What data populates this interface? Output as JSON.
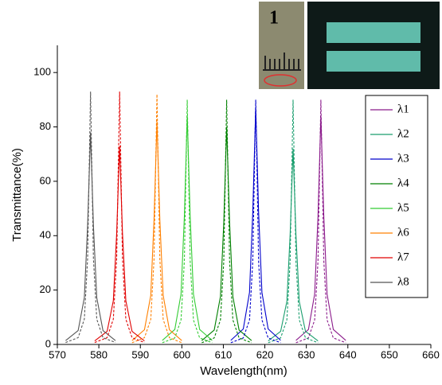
{
  "chart_data": {
    "type": "line",
    "xlabel": "Wavelength(nm)",
    "ylabel": "Transmittance(%)",
    "annotations": [
      "1"
    ],
    "xlim": [
      570,
      660
    ],
    "xticks": [
      570,
      580,
      590,
      600,
      610,
      620,
      630,
      640,
      650,
      660
    ],
    "ylim": [
      0,
      110
    ],
    "yticks": [
      0,
      20,
      40,
      60,
      80,
      100
    ],
    "legend": "upper right",
    "series": [
      {
        "name": "λ1",
        "color": "#8b1a8b",
        "x": [
          627.5,
          630.5,
          632,
          632.8,
          633.5,
          634.2,
          635,
          636.5,
          639.5
        ],
        "values": [
          1.5,
          5.5,
          18.5,
          47,
          84,
          47,
          18.5,
          5.5,
          1.5
        ]
      },
      {
        "name": "λ2",
        "color": "#1a9e6e",
        "x": [
          620.8,
          623.8,
          625.3,
          626.1,
          626.8,
          627.5,
          628.3,
          629.8,
          632.8
        ],
        "values": [
          1.3,
          4.8,
          15.8,
          40.3,
          72,
          40.3,
          15.8,
          4.8,
          1.3
        ]
      },
      {
        "name": "λ3",
        "color": "#0000cc",
        "x": [
          611.8,
          614.8,
          616.3,
          617.1,
          617.8,
          618.5,
          619.3,
          620.8,
          623.8
        ],
        "values": [
          1.5,
          5.7,
          19.1,
          48.7,
          87,
          48.7,
          19.1,
          5.7,
          1.5
        ]
      },
      {
        "name": "λ4",
        "color": "#008000",
        "x": [
          604.8,
          607.8,
          609.3,
          610.1,
          610.8,
          611.5,
          612.3,
          613.8,
          616.8
        ],
        "values": [
          1.4,
          5.3,
          17.6,
          44.8,
          80,
          44.8,
          17.6,
          5.3,
          1.4
        ]
      },
      {
        "name": "λ5",
        "color": "#33cc33",
        "x": [
          595.3,
          598.3,
          599.8,
          600.6,
          601.3,
          602,
          602.8,
          604.3,
          607.3
        ],
        "values": [
          1.5,
          5.5,
          18.5,
          47,
          84,
          47,
          18.5,
          5.5,
          1.5
        ]
      },
      {
        "name": "λ6",
        "color": "#ff8000",
        "x": [
          588,
          591,
          592.5,
          593.3,
          594,
          594.7,
          595.5,
          597,
          600
        ],
        "values": [
          1.4,
          5.4,
          18,
          45.9,
          82,
          45.9,
          18,
          5.4,
          1.4
        ]
      },
      {
        "name": "λ7",
        "color": "#e00000",
        "x": [
          579,
          582,
          583.5,
          584.3,
          585,
          585.7,
          586.5,
          588,
          591
        ],
        "values": [
          1.3,
          4.8,
          16.1,
          40.9,
          73,
          40.9,
          16.1,
          4.8,
          1.3
        ]
      },
      {
        "name": "λ8",
        "color": "#555555",
        "x": [
          572,
          575,
          576.5,
          577.3,
          578,
          578.7,
          579.5,
          581,
          584
        ],
        "values": [
          1.4,
          5.1,
          17.2,
          43.7,
          78,
          43.7,
          17.2,
          5.1,
          1.4
        ]
      },
      {
        "color": "#8b1a8b",
        "dash": true,
        "x": [
          627.5,
          630.5,
          632,
          632.8,
          633.5,
          634.2,
          635,
          636.5,
          639.5
        ],
        "values": [
          0.6,
          2.4,
          9,
          30.6,
          90,
          30.6,
          9,
          2.4,
          0.6
        ]
      },
      {
        "color": "#1a9e6e",
        "dash": true,
        "x": [
          620.8,
          623.8,
          625.3,
          626.1,
          626.8,
          627.5,
          628.3,
          629.8,
          632.8
        ],
        "values": [
          0.6,
          2.4,
          9,
          30.6,
          90,
          30.6,
          9,
          2.4,
          0.6
        ]
      },
      {
        "color": "#0000cc",
        "dash": true,
        "x": [
          611.8,
          614.8,
          616.3,
          617.1,
          617.8,
          618.5,
          619.3,
          620.8,
          623.8
        ],
        "values": [
          0.6,
          2.4,
          9,
          30.6,
          90,
          30.6,
          9,
          2.4,
          0.6
        ]
      },
      {
        "color": "#008000",
        "dash": true,
        "x": [
          604.8,
          607.8,
          609.3,
          610.1,
          610.8,
          611.5,
          612.3,
          613.8,
          616.8
        ],
        "values": [
          0.6,
          2.4,
          9,
          30.6,
          90,
          30.6,
          9,
          2.4,
          0.6
        ]
      },
      {
        "color": "#33cc33",
        "dash": true,
        "x": [
          595.3,
          598.3,
          599.8,
          600.6,
          601.3,
          602,
          602.8,
          604.3,
          607.3
        ],
        "values": [
          0.6,
          2.4,
          9,
          30.6,
          90,
          30.6,
          9,
          2.4,
          0.6
        ]
      },
      {
        "color": "#ff8000",
        "dash": true,
        "x": [
          588,
          591,
          592.5,
          593.3,
          594,
          594.7,
          595.5,
          597,
          600
        ],
        "values": [
          0.6,
          2.5,
          9.2,
          31.3,
          92,
          31.3,
          9.2,
          2.5,
          0.6
        ]
      },
      {
        "color": "#e00000",
        "dash": true,
        "x": [
          579,
          582,
          583.5,
          584.3,
          585,
          585.7,
          586.5,
          588,
          591
        ],
        "values": [
          0.7,
          2.5,
          9.3,
          31.6,
          93,
          31.6,
          9.3,
          2.5,
          0.7
        ]
      },
      {
        "color": "#555555",
        "dash": true,
        "x": [
          572,
          575,
          576.5,
          577.3,
          578,
          578.7,
          579.5,
          581,
          584
        ],
        "values": [
          0.7,
          2.5,
          9.3,
          31.6,
          93,
          31.6,
          9.3,
          2.5,
          0.7
        ]
      }
    ]
  }
}
